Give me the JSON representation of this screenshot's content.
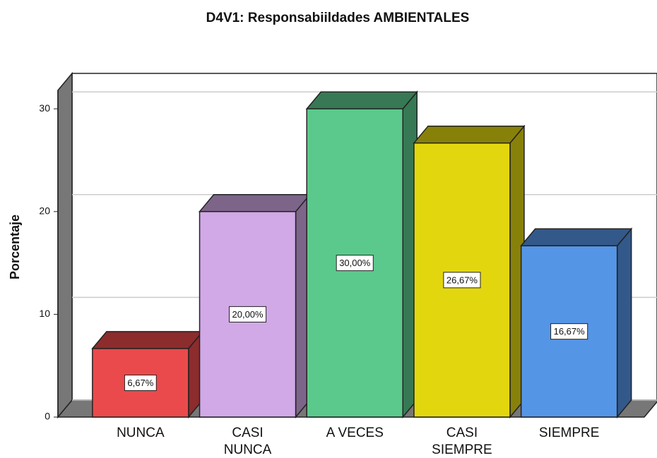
{
  "chart_data": {
    "type": "bar3d",
    "title": "D4V1: Responsabiildades AMBIENTALES",
    "ylabel": "Porcentaje",
    "categories": [
      "NUNCA",
      "CASI\nNUNCA",
      "A VECES",
      "CASI\nSIEMPRE",
      "SIEMPRE"
    ],
    "values": [
      6.67,
      20,
      30,
      26.67,
      16.67
    ],
    "value_labels": [
      "6,67%",
      "20,00%",
      "30,00%",
      "26,67%",
      "16,67%"
    ],
    "colors": [
      "#ea4a4b",
      "#d0a9e6",
      "#5bc98c",
      "#e2d70f",
      "#5595e6"
    ],
    "ylim": [
      0,
      31.8
    ],
    "yticks": [
      0,
      10,
      20,
      30
    ],
    "grid": true
  }
}
